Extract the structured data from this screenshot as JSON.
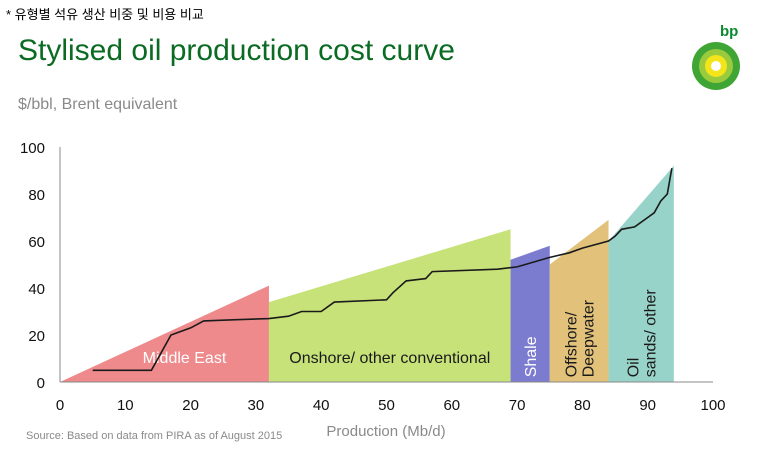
{
  "note": "* 유형별 석유 생산 비중 및 비용 비교",
  "brand": "bp",
  "colors": {
    "title": "#0b6b23",
    "middle_east": "#ef8a8c",
    "onshore": "#c8e27a",
    "shale": "#7b7bd0",
    "offshore": "#e2c27a",
    "oil_sands": "#98d3c9",
    "curve": "#1a1a1a"
  },
  "chart_data": {
    "type": "area",
    "title": "Stylised oil production cost curve",
    "ylabel": "$/bbl, Brent equivalent",
    "xlabel": "Production (Mb/d)",
    "source": "Source: Based on data from PIRA as of August 2015",
    "xlim": [
      0,
      100
    ],
    "ylim": [
      0,
      100
    ],
    "xticks": [
      0,
      10,
      20,
      30,
      40,
      50,
      60,
      70,
      80,
      90,
      100
    ],
    "yticks": [
      0,
      20,
      40,
      60,
      80,
      100
    ],
    "segments": [
      {
        "name": "Middle East",
        "x": [
          0,
          32
        ],
        "y_top": [
          0,
          41
        ],
        "color": "#ef8a8c",
        "label_color": "#ffffff",
        "vertical": false
      },
      {
        "name": "Onshore/ other conventional",
        "x": [
          32,
          69
        ],
        "y_top": [
          34,
          65
        ],
        "color": "#c8e27a",
        "label_color": "#1a1a1a",
        "vertical": false
      },
      {
        "name": "Shale",
        "x": [
          69,
          75
        ],
        "y_top": [
          52,
          58
        ],
        "color": "#7b7bd0",
        "label_color": "#ffffff",
        "vertical": true
      },
      {
        "name": "Offshore/ Deepwater",
        "x": [
          75,
          84
        ],
        "y_top": [
          50,
          69
        ],
        "color": "#e2c27a",
        "label_color": "#1a1a1a",
        "vertical": true
      },
      {
        "name": "Oil sands/ other",
        "x": [
          84,
          94
        ],
        "y_top": [
          60,
          92
        ],
        "color": "#98d3c9",
        "label_color": "#1a1a1a",
        "vertical": true
      }
    ],
    "cost_curve": {
      "x": [
        5,
        14,
        17,
        20,
        22,
        27,
        32,
        35,
        37,
        40,
        42,
        50,
        51,
        53,
        56,
        57,
        67,
        70,
        75,
        78,
        80,
        84,
        85,
        86,
        88,
        90,
        91,
        92,
        93,
        93.5,
        93.7
      ],
      "y": [
        5,
        5,
        20,
        23,
        26,
        26.5,
        27,
        28,
        30,
        30,
        34,
        35,
        38,
        43,
        44,
        47,
        48,
        49,
        53,
        55,
        57,
        60,
        62,
        65,
        66,
        70,
        72,
        77,
        80,
        88,
        91
      ]
    }
  }
}
